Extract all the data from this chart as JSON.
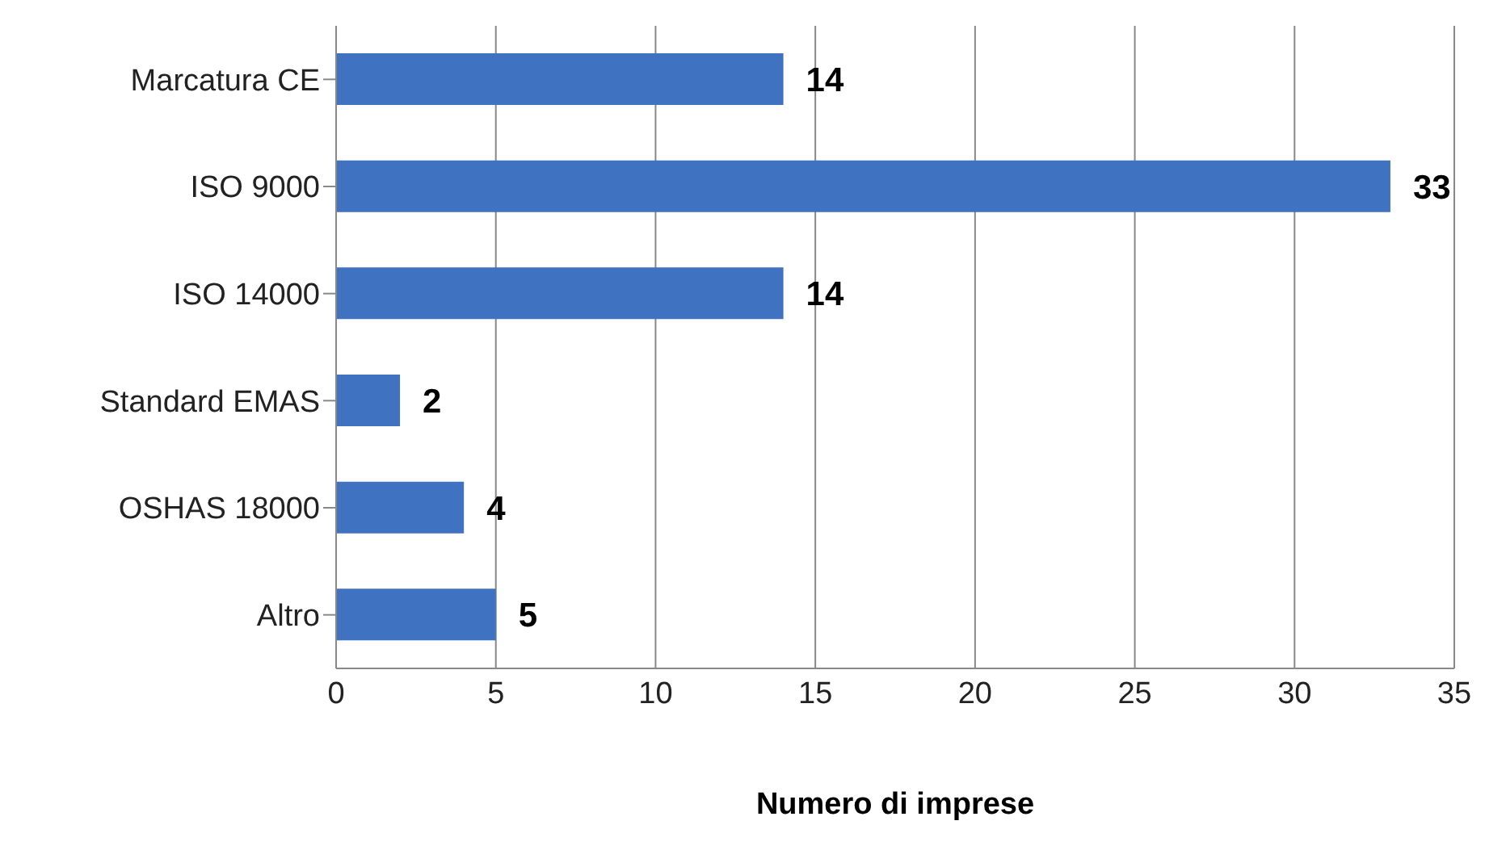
{
  "chart_data": {
    "type": "bar",
    "orientation": "horizontal",
    "xlabel": "Numero di imprese",
    "categories": [
      "Marcatura CE",
      "ISO 9000",
      "ISO 14000",
      "Standard EMAS",
      "OSHAS 18000",
      "Altro"
    ],
    "values": [
      14,
      33,
      14,
      2,
      4,
      5
    ],
    "color": "#3f72c0",
    "xlim": [
      0,
      35
    ],
    "xticks": [
      0,
      5,
      10,
      15,
      20,
      25,
      30,
      35
    ],
    "grid": "x",
    "data_labels": true,
    "legend": false
  }
}
